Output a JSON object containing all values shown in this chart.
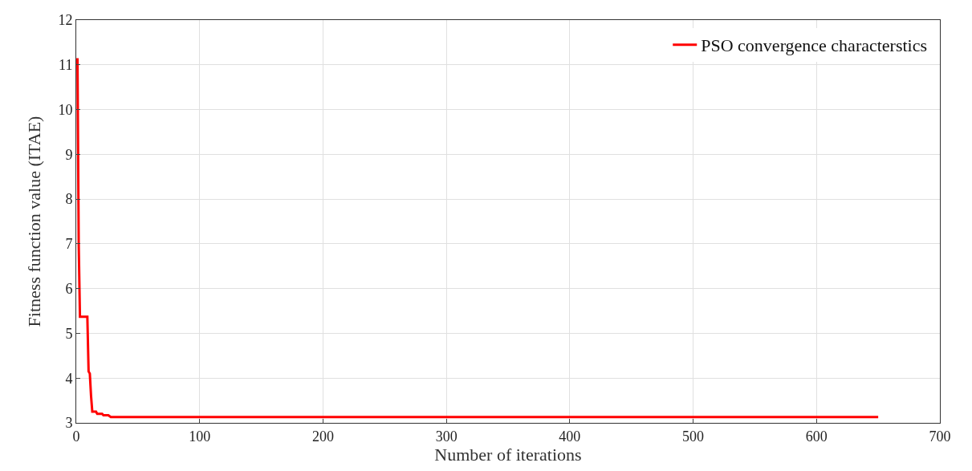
{
  "chart_data": {
    "type": "line",
    "xlabel": "Number of iterations",
    "ylabel": "Fitness function value (ITAE)",
    "x": [
      1,
      2,
      3,
      9,
      10,
      11,
      12,
      13,
      16,
      17,
      21,
      22,
      26,
      28,
      650
    ],
    "series": [
      {
        "name": "PSO convergence characterstics",
        "color": "#ff0000",
        "values": [
          11.15,
          7.0,
          5.37,
          5.37,
          4.15,
          4.1,
          3.6,
          3.25,
          3.25,
          3.2,
          3.2,
          3.17,
          3.17,
          3.13,
          3.13
        ]
      }
    ],
    "xlim": [
      0,
      700
    ],
    "xticks": [
      0,
      100,
      200,
      300,
      400,
      500,
      600,
      700
    ],
    "ylim": [
      3,
      12
    ],
    "yticks": [
      3,
      4,
      5,
      6,
      7,
      8,
      9,
      10,
      11,
      12
    ],
    "grid": true,
    "legend": "top right",
    "line_style": "solid",
    "marker": "none"
  }
}
